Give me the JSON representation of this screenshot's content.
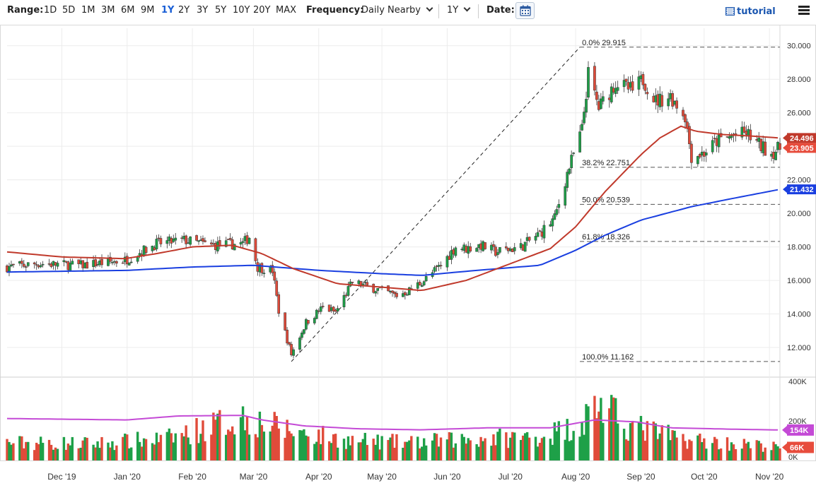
{
  "toolbar": {
    "range_label": "Range:",
    "ranges": [
      "1D",
      "5D",
      "1M",
      "3M",
      "6M",
      "9M",
      "1Y",
      "2Y",
      "3Y",
      "5Y",
      "10Y",
      "20Y",
      "MAX"
    ],
    "active_range": "1Y",
    "frequency_label": "Frequency:",
    "frequency_value": "Daily Nearby",
    "period_value": "1Y",
    "date_label": "Date:",
    "tutorial_label": "tutorial",
    "icons": {
      "calendar": "calendar-icon",
      "tutorial": "film-icon",
      "menu": "hamburger-menu-icon",
      "dropdown": "chevron-down-icon"
    }
  },
  "chart_data": {
    "type": "candlestick",
    "price_axis": {
      "ticks": [
        "12.000",
        "14.000",
        "16.000",
        "18.000",
        "20.000",
        "22.000",
        "24.000",
        "26.000",
        "28.000",
        "30.000"
      ],
      "range": [
        10.4,
        31.0
      ]
    },
    "volume_axis": {
      "ticks": [
        "0K",
        "200K",
        "400K"
      ],
      "range": [
        0,
        400
      ]
    },
    "x_labels": [
      "Dec '19",
      "Jan '20",
      "Feb '20",
      "Mar '20",
      "Apr '20",
      "May '20",
      "Jun '20",
      "Jul '20",
      "Aug '20",
      "Sep '20",
      "Oct '20",
      "Nov '20"
    ],
    "x_label_dates": [
      "2019-12-01",
      "2020-01-01",
      "2020-02-01",
      "2020-03-01",
      "2020-04-01",
      "2020-05-01",
      "2020-06-01",
      "2020-07-01",
      "2020-08-01",
      "2020-09-01",
      "2020-10-01",
      "2020-11-01"
    ],
    "date_range": [
      "2019-11-05",
      "2020-11-06"
    ],
    "price_anchors": [
      [
        "2019-11-05",
        16.8
      ],
      [
        "2019-11-20",
        17.0
      ],
      [
        "2019-12-10",
        16.9
      ],
      [
        "2019-12-31",
        17.2
      ],
      [
        "2020-01-15",
        18.2
      ],
      [
        "2020-01-28",
        18.4
      ],
      [
        "2020-02-10",
        18.1
      ],
      [
        "2020-02-25",
        18.2
      ],
      [
        "2020-02-28",
        18.6
      ],
      [
        "2020-03-03",
        16.8
      ],
      [
        "2020-03-10",
        16.6
      ],
      [
        "2020-03-13",
        14.2
      ],
      [
        "2020-03-19",
        11.6
      ],
      [
        "2020-03-26",
        13.5
      ],
      [
        "2020-04-03",
        14.4
      ],
      [
        "2020-04-09",
        14.1
      ],
      [
        "2020-04-17",
        15.9
      ],
      [
        "2020-04-28",
        15.5
      ],
      [
        "2020-05-08",
        15.1
      ],
      [
        "2020-05-14",
        15.4
      ],
      [
        "2020-05-22",
        16.1
      ],
      [
        "2020-05-29",
        16.9
      ],
      [
        "2020-06-05",
        18.0
      ],
      [
        "2020-06-10",
        17.9
      ],
      [
        "2020-06-17",
        18.1
      ],
      [
        "2020-06-24",
        17.7
      ],
      [
        "2020-07-06",
        18.0
      ],
      [
        "2020-07-15",
        18.8
      ],
      [
        "2020-07-22",
        19.7
      ],
      [
        "2020-07-28",
        22.4
      ],
      [
        "2020-08-04",
        25.0
      ],
      [
        "2020-08-07",
        28.3
      ],
      [
        "2020-08-12",
        26.3
      ],
      [
        "2020-08-20",
        27.8
      ],
      [
        "2020-08-28",
        27.3
      ],
      [
        "2020-09-02",
        28.0
      ],
      [
        "2020-09-08",
        26.7
      ],
      [
        "2020-09-15",
        27.0
      ],
      [
        "2020-09-22",
        25.8
      ],
      [
        "2020-09-25",
        23.4
      ],
      [
        "2020-10-01",
        23.6
      ],
      [
        "2020-10-07",
        24.3
      ],
      [
        "2020-10-14",
        24.6
      ],
      [
        "2020-10-21",
        24.8
      ],
      [
        "2020-10-28",
        24.0
      ],
      [
        "2020-11-02",
        23.6
      ],
      [
        "2020-11-06",
        23.905
      ]
    ],
    "volume_anchors": [
      [
        "2019-11-05",
        90
      ],
      [
        "2019-12-15",
        85
      ],
      [
        "2020-01-20",
        110
      ],
      [
        "2020-02-25",
        220
      ],
      [
        "2020-03-15",
        160
      ],
      [
        "2020-04-15",
        100
      ],
      [
        "2020-05-15",
        90
      ],
      [
        "2020-06-15",
        110
      ],
      [
        "2020-07-15",
        120
      ],
      [
        "2020-08-03",
        180
      ],
      [
        "2020-08-11",
        290
      ],
      [
        "2020-08-25",
        180
      ],
      [
        "2020-09-20",
        110
      ],
      [
        "2020-10-15",
        85
      ],
      [
        "2020-11-06",
        66
      ]
    ],
    "ma_short": [
      [
        "2019-11-05",
        17.7
      ],
      [
        "2019-12-01",
        17.4
      ],
      [
        "2019-12-31",
        17.3
      ],
      [
        "2020-01-15",
        17.6
      ],
      [
        "2020-02-01",
        18.0
      ],
      [
        "2020-02-20",
        18.1
      ],
      [
        "2020-03-05",
        17.6
      ],
      [
        "2020-03-20",
        16.7
      ],
      [
        "2020-04-10",
        15.8
      ],
      [
        "2020-05-01",
        15.6
      ],
      [
        "2020-05-20",
        15.4
      ],
      [
        "2020-06-10",
        16.0
      ],
      [
        "2020-07-01",
        17.0
      ],
      [
        "2020-07-20",
        17.9
      ],
      [
        "2020-08-01",
        19.2
      ],
      [
        "2020-08-15",
        21.3
      ],
      [
        "2020-09-01",
        23.5
      ],
      [
        "2020-09-10",
        24.5
      ],
      [
        "2020-09-20",
        25.2
      ],
      [
        "2020-09-27",
        24.9
      ],
      [
        "2020-10-10",
        24.7
      ],
      [
        "2020-10-25",
        24.6
      ],
      [
        "2020-11-06",
        24.496
      ]
    ],
    "ma_long": [
      [
        "2019-11-05",
        16.5
      ],
      [
        "2020-01-01",
        16.6
      ],
      [
        "2020-02-01",
        16.8
      ],
      [
        "2020-03-01",
        16.9
      ],
      [
        "2020-04-01",
        16.6
      ],
      [
        "2020-05-01",
        16.4
      ],
      [
        "2020-05-20",
        16.3
      ],
      [
        "2020-06-15",
        16.6
      ],
      [
        "2020-07-15",
        16.9
      ],
      [
        "2020-08-01",
        17.8
      ],
      [
        "2020-08-15",
        18.7
      ],
      [
        "2020-09-01",
        19.6
      ],
      [
        "2020-09-25",
        20.4
      ],
      [
        "2020-10-15",
        20.9
      ],
      [
        "2020-11-06",
        21.432
      ]
    ],
    "volume_ma": [
      [
        "2019-11-05",
        212
      ],
      [
        "2020-01-01",
        205
      ],
      [
        "2020-01-25",
        225
      ],
      [
        "2020-02-25",
        228
      ],
      [
        "2020-03-05",
        205
      ],
      [
        "2020-03-25",
        175
      ],
      [
        "2020-04-20",
        160
      ],
      [
        "2020-05-20",
        155
      ],
      [
        "2020-06-20",
        165
      ],
      [
        "2020-07-20",
        165
      ],
      [
        "2020-08-10",
        205
      ],
      [
        "2020-08-30",
        195
      ],
      [
        "2020-09-15",
        165
      ],
      [
        "2020-10-15",
        158
      ],
      [
        "2020-11-06",
        154
      ]
    ],
    "fibonacci": [
      {
        "label": "0.0% 29.915",
        "value": 29.915
      },
      {
        "label": "38.2% 22.751",
        "value": 22.751
      },
      {
        "label": "50.0% 20.539",
        "value": 20.539
      },
      {
        "label": "61.8% 18.326",
        "value": 18.326
      },
      {
        "label": "100.0% 11.162",
        "value": 11.162
      }
    ],
    "fib_start_date": "2020-08-03",
    "trendline": {
      "from": [
        "2020-03-19",
        11.162
      ],
      "to": [
        "2020-08-03",
        29.915
      ]
    },
    "price_badges": [
      {
        "label": "24.496",
        "value": 24.496,
        "color": "#c0392b"
      },
      {
        "label": "23.905",
        "value": 23.905,
        "color": "#e74c3c"
      },
      {
        "label": "21.432",
        "value": 21.432,
        "color": "#1a3fe0"
      }
    ],
    "volume_badges": [
      {
        "label": "154K",
        "value": 154,
        "color": "#c44ad6"
      },
      {
        "label": "66K",
        "value": 66,
        "color": "#e74c3c"
      }
    ],
    "colors": {
      "up": "#1ea048",
      "down": "#e04b3a",
      "ma_short": "#c0392b",
      "ma_long": "#1a3fe0",
      "volume_ma": "#c44ad6"
    }
  }
}
